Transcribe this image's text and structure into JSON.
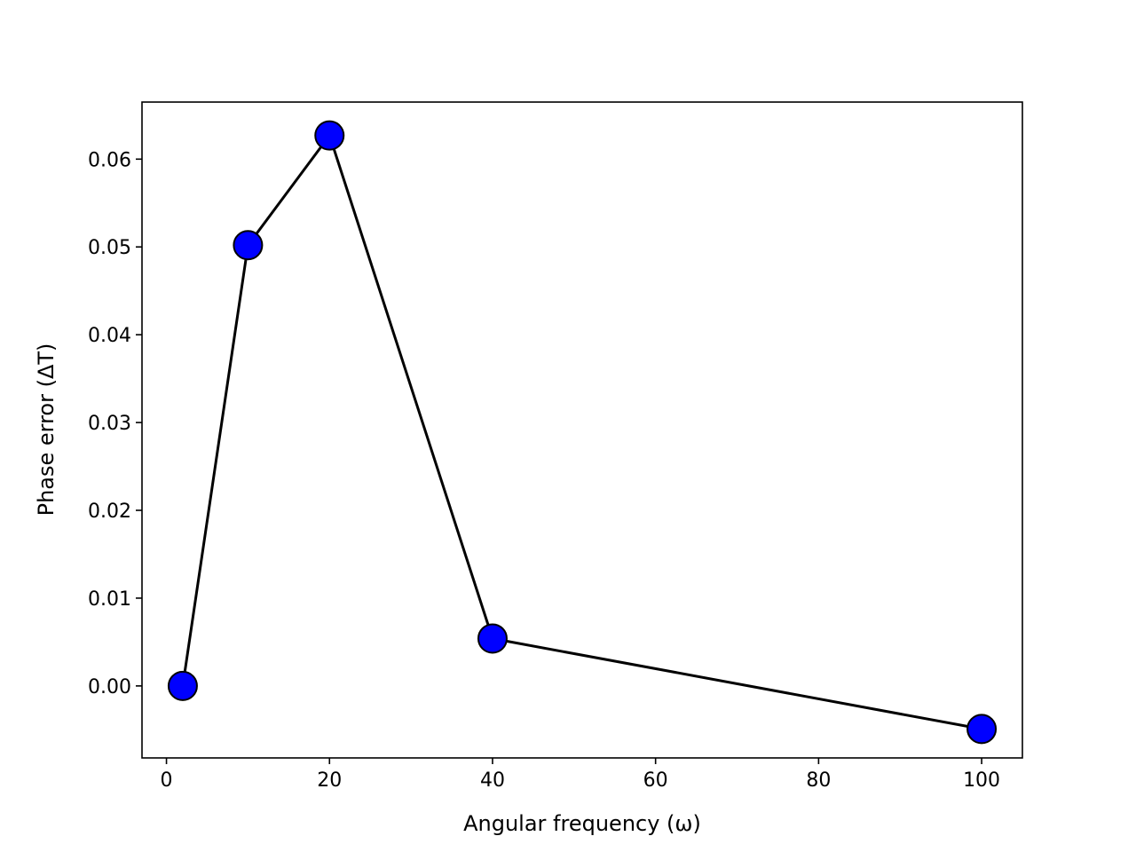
{
  "chart_data": {
    "type": "line",
    "title": "",
    "xlabel": "Angular frequency (ω)",
    "ylabel": "Phase error (ΔT)",
    "xlim": [
      -3,
      105
    ],
    "ylim": [
      -0.0082,
      0.0665
    ],
    "xticks": [
      0,
      20,
      40,
      60,
      80,
      100
    ],
    "xtick_labels": [
      "0",
      "20",
      "40",
      "60",
      "80",
      "100"
    ],
    "yticks": [
      0.0,
      0.01,
      0.02,
      0.03,
      0.04,
      0.05,
      0.06
    ],
    "ytick_labels": [
      "0.00",
      "0.01",
      "0.02",
      "0.03",
      "0.04",
      "0.05",
      "0.06"
    ],
    "grid": false,
    "series": [
      {
        "x": [
          2,
          10,
          20,
          40,
          100
        ],
        "y": [
          0.0,
          0.0502,
          0.0627,
          0.0054,
          -0.0049
        ],
        "line_color": "#000000",
        "marker": "circle",
        "marker_face_color": "#0000ff",
        "marker_edge_color": "#000000"
      }
    ]
  }
}
